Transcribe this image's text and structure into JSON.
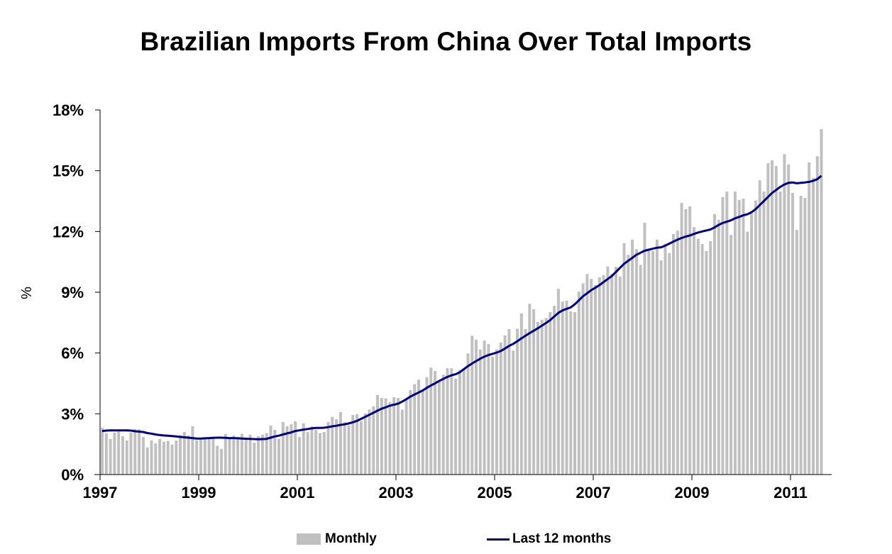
{
  "chart_data": {
    "type": "bar+line",
    "title": "Brazilian Imports From China Over Total Imports",
    "xlabel": "",
    "ylabel": "%",
    "ylim": [
      0,
      18
    ],
    "yticks": [
      "0%",
      "3%",
      "6%",
      "9%",
      "12%",
      "15%",
      "18%"
    ],
    "ytick_values": [
      0,
      3,
      6,
      9,
      12,
      15,
      18
    ],
    "xticks": [
      "1997",
      "1999",
      "2001",
      "2003",
      "2005",
      "2007",
      "2009",
      "2011"
    ],
    "x_start": "1997-01",
    "x_end": "2011-10",
    "grid": false,
    "legend_position": "bottom",
    "colors": {
      "bars": "#c0c0c0",
      "line": "#000080",
      "axis": "#000000"
    },
    "series": [
      {
        "name": "Monthly",
        "type": "bar",
        "values": [
          2.32,
          2.04,
          1.75,
          2.07,
          2.12,
          1.89,
          1.68,
          2.07,
          2.24,
          2.24,
          1.86,
          1.34,
          1.68,
          1.54,
          1.75,
          1.62,
          1.66,
          1.48,
          1.68,
          1.93,
          2.1,
          1.93,
          2.39,
          1.69,
          1.74,
          1.77,
          1.77,
          1.77,
          1.42,
          1.27,
          2.01,
          1.77,
          1.93,
          1.86,
          2.01,
          1.8,
          1.97,
          1.58,
          1.89,
          1.97,
          2.04,
          2.42,
          2.21,
          1.77,
          2.59,
          2.39,
          2.48,
          2.63,
          1.86,
          2.53,
          2.1,
          2.38,
          2.21,
          2.04,
          2.1,
          2.59,
          2.85,
          2.73,
          3.08,
          2.59,
          2.42,
          2.94,
          2.98,
          2.63,
          3.02,
          3.21,
          3.37,
          3.93,
          3.79,
          3.76,
          3.58,
          3.82,
          3.78,
          3.2,
          3.7,
          4.17,
          4.46,
          4.69,
          4.2,
          4.81,
          5.28,
          5.12,
          4.63,
          4.93,
          5.25,
          5.25,
          4.73,
          5.16,
          5.22,
          5.98,
          6.85,
          6.65,
          6.17,
          6.62,
          6.44,
          5.82,
          6.17,
          6.52,
          6.87,
          7.18,
          6.12,
          7.2,
          7.96,
          7.18,
          8.43,
          8.16,
          7.53,
          7.64,
          7.73,
          8.02,
          8.33,
          9.17,
          8.54,
          8.58,
          8.05,
          8.02,
          9.04,
          9.44,
          9.9,
          9.66,
          9.36,
          9.74,
          9.85,
          10.27,
          9.91,
          10.26,
          9.77,
          11.43,
          10.85,
          11.6,
          11.13,
          10.35,
          12.43,
          11.11,
          11.03,
          11.6,
          10.58,
          11.4,
          10.94,
          11.87,
          12.04,
          13.41,
          13.1,
          13.24,
          12.22,
          11.64,
          11.38,
          11.03,
          11.52,
          12.86,
          12.57,
          13.7,
          13.97,
          11.83,
          13.97,
          13.56,
          13.62,
          11.99,
          12.92,
          13.53,
          14.53,
          13.97,
          15.37,
          15.51,
          15.23,
          13.97,
          15.82,
          15.31,
          13.91,
          12.08,
          13.76,
          13.66,
          15.41,
          14.65,
          15.72,
          17.06
        ]
      },
      {
        "name": "Last 12 months",
        "type": "line",
        "values": [
          2.15,
          2.17,
          2.18,
          2.18,
          2.18,
          2.18,
          2.18,
          2.17,
          2.14,
          2.12,
          2.1,
          2.05,
          2.02,
          1.98,
          1.95,
          1.93,
          1.92,
          1.9,
          1.88,
          1.86,
          1.84,
          1.82,
          1.8,
          1.78,
          1.78,
          1.79,
          1.8,
          1.81,
          1.82,
          1.82,
          1.81,
          1.8,
          1.8,
          1.79,
          1.78,
          1.77,
          1.76,
          1.75,
          1.74,
          1.75,
          1.76,
          1.82,
          1.88,
          1.92,
          1.98,
          2.03,
          2.08,
          2.15,
          2.18,
          2.22,
          2.25,
          2.28,
          2.3,
          2.3,
          2.31,
          2.34,
          2.38,
          2.41,
          2.45,
          2.48,
          2.52,
          2.58,
          2.65,
          2.75,
          2.85,
          2.95,
          3.05,
          3.15,
          3.25,
          3.32,
          3.4,
          3.45,
          3.5,
          3.6,
          3.72,
          3.85,
          3.95,
          4.05,
          4.15,
          4.28,
          4.4,
          4.5,
          4.62,
          4.72,
          4.82,
          4.9,
          4.95,
          5.05,
          5.2,
          5.35,
          5.48,
          5.6,
          5.72,
          5.82,
          5.9,
          5.96,
          6.02,
          6.1,
          6.22,
          6.35,
          6.45,
          6.58,
          6.72,
          6.85,
          6.98,
          7.1,
          7.22,
          7.35,
          7.48,
          7.62,
          7.8,
          7.98,
          8.1,
          8.18,
          8.25,
          8.4,
          8.6,
          8.8,
          8.95,
          9.1,
          9.22,
          9.35,
          9.5,
          9.65,
          9.8,
          10.0,
          10.2,
          10.4,
          10.55,
          10.7,
          10.85,
          10.95,
          11.05,
          11.1,
          11.15,
          11.2,
          11.22,
          11.3,
          11.4,
          11.5,
          11.6,
          11.68,
          11.75,
          11.8,
          11.88,
          11.95,
          12.0,
          12.05,
          12.1,
          12.2,
          12.32,
          12.42,
          12.48,
          12.55,
          12.65,
          12.72,
          12.8,
          12.85,
          12.95,
          13.1,
          13.3,
          13.5,
          13.7,
          13.9,
          14.05,
          14.2,
          14.32,
          14.4,
          14.42,
          14.38,
          14.4,
          14.42,
          14.45,
          14.5,
          14.58,
          14.75
        ]
      }
    ]
  },
  "legend": {
    "items": [
      {
        "label": "Monthly",
        "swatch": "bar"
      },
      {
        "label": "Last 12 months",
        "swatch": "line"
      }
    ]
  }
}
